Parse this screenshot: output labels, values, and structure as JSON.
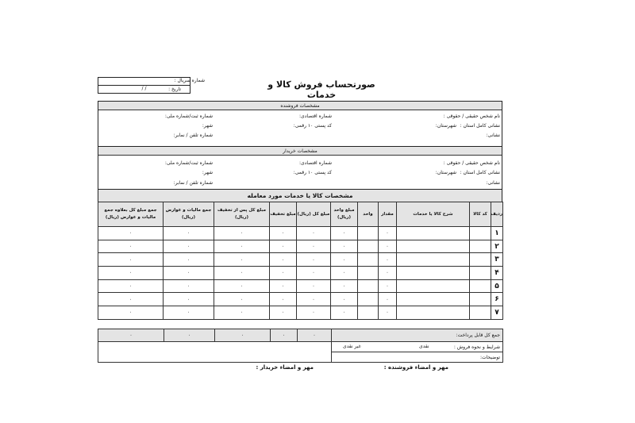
{
  "title": "صورتحساب فروش کالا و خدمات",
  "serial_label": "شماره سریال :",
  "date_label": "تاریخ :",
  "date_value": "/   /",
  "seller": {
    "header": "مشخصات فروشنده",
    "name": "نام شخص حقیقی / حقوقی :",
    "economic": "شماره اقتصادی:",
    "national": "شماره ثبت/شماره ملی:",
    "address": "نشانی کامل استان :",
    "county": "شهرستان:",
    "postal": "کد پستی ۱۰ رقمی:",
    "city": "شهر:",
    "addr2": "نشانی:",
    "phone": "شماره تلفن / نمابر:"
  },
  "buyer": {
    "header": "مشخصات خریدار",
    "name": "نام شخص حقیقی / حقوقی :",
    "economic": "شماره اقتصادی:",
    "national": "شماره ثبت/شماره ملی:",
    "address": "نشانی کامل استان :",
    "county": "شهرستان:",
    "postal": "کد پستی ۱۰ رقمی:",
    "city": "شهر:",
    "addr2": "نشانی:",
    "phone": "شماره تلفن / نمابر:"
  },
  "goods": {
    "header": "مشخصات کالا یا خدمات مورد معامله",
    "columns": [
      "ردیف",
      "کد کالا",
      "شرح کالا یا خدمات",
      "مقدار",
      "واحد",
      "مبلغ واحد (ریال)",
      "مبلغ کل (ریال)",
      "مبلغ تخفیف",
      "مبلغ کل پس از تخفیف (ریال)",
      "جمع مالیات و عوارض (ریال)",
      "جمع مبلغ کل بعلاوه جمع مالیات و عوارض (ریال)"
    ],
    "rows": [
      {
        "n": "۱",
        "qty": "۰",
        "unit_price": "۰",
        "total": "۰",
        "discount": "۰",
        "after": "۰",
        "tax": "۰",
        "grand": "۰"
      },
      {
        "n": "۲",
        "qty": "۰",
        "unit_price": "۰",
        "total": "۰",
        "discount": "۰",
        "after": "۰",
        "tax": "۰",
        "grand": "۰"
      },
      {
        "n": "۳",
        "qty": "۰",
        "unit_price": "۰",
        "total": "۰",
        "discount": "۰",
        "after": "۰",
        "tax": "۰",
        "grand": "۰"
      },
      {
        "n": "۴",
        "qty": "۰",
        "unit_price": "۰",
        "total": "۰",
        "discount": "۰",
        "after": "۰",
        "tax": "۰",
        "grand": "۰"
      },
      {
        "n": "۵",
        "qty": "۰",
        "unit_price": "۰",
        "total": "۰",
        "discount": "۰",
        "after": "۰",
        "tax": "۰",
        "grand": "۰"
      },
      {
        "n": "۶",
        "qty": "۰",
        "unit_price": "۰",
        "total": "۰",
        "discount": "۰",
        "after": "۰",
        "tax": "۰",
        "grand": "۰"
      },
      {
        "n": "۷",
        "qty": "۰",
        "unit_price": "۰",
        "total": "۰",
        "discount": "۰",
        "after": "۰",
        "tax": "۰",
        "grand": "۰"
      }
    ]
  },
  "totals": {
    "label": "جمع کل قابل پرداخت:",
    "total": "۰",
    "discount": "۰",
    "after": "۰",
    "tax": "۰",
    "grand": "۰"
  },
  "terms": {
    "label": "شرایط و نحوه فروش :",
    "cash": "نقدی",
    "credit": "غیر نقدی",
    "notes": "توضیحات:"
  },
  "signatures": {
    "seller": "مهر و امضاء فروشنده :",
    "buyer": "مهر و امضاء خریدار :"
  }
}
